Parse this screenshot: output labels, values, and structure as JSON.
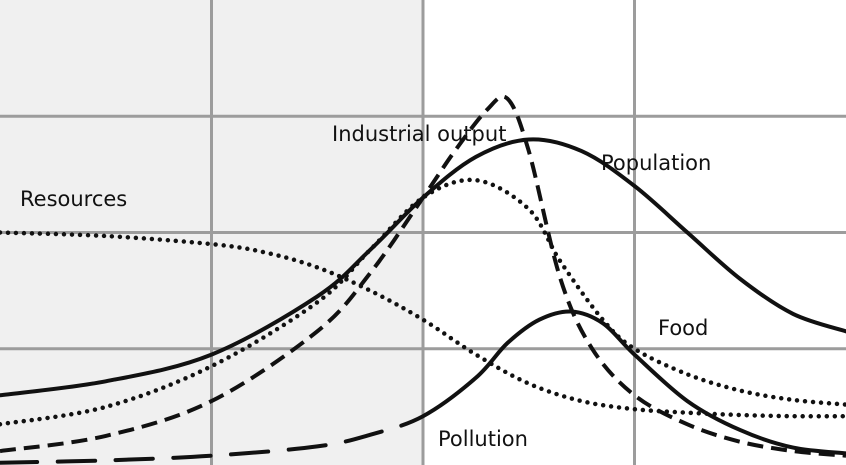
{
  "chart_data": {
    "type": "line",
    "title": "",
    "xlabel": "",
    "ylabel": "",
    "xlim": [
      0,
      8
    ],
    "ylim": [
      0,
      4
    ],
    "grid": true,
    "grid_x": [
      2,
      4,
      6
    ],
    "grid_y": [
      1,
      2,
      3
    ],
    "shaded_region": [
      0,
      4
    ],
    "legend": "none (series labelled inline)",
    "series": [
      {
        "name": "Population",
        "style": "solid",
        "x": [
          0,
          1,
          2,
          3,
          3.5,
          4,
          4.5,
          5,
          5.5,
          6,
          6.5,
          7,
          7.5,
          8
        ],
        "y": [
          0.6,
          0.72,
          0.95,
          1.45,
          1.85,
          2.3,
          2.65,
          2.8,
          2.7,
          2.4,
          2.0,
          1.6,
          1.3,
          1.15
        ]
      },
      {
        "name": "Industrial output",
        "style": "dashed",
        "x": [
          0,
          1,
          2,
          3,
          3.5,
          4,
          4.3,
          4.6,
          4.8,
          5.0,
          5.3,
          5.6,
          6,
          6.5,
          7,
          7.5,
          8
        ],
        "y": [
          0.12,
          0.25,
          0.55,
          1.15,
          1.65,
          2.3,
          2.7,
          3.05,
          3.15,
          2.7,
          1.6,
          1.0,
          0.6,
          0.35,
          0.2,
          0.12,
          0.08
        ]
      },
      {
        "name": "Food",
        "style": "dotted",
        "x": [
          0,
          1,
          2,
          3,
          3.5,
          4,
          4.5,
          5,
          5.3,
          5.7,
          6,
          6.5,
          7,
          7.5,
          8
        ],
        "y": [
          0.35,
          0.5,
          0.85,
          1.4,
          1.85,
          2.3,
          2.45,
          2.2,
          1.75,
          1.25,
          1.0,
          0.78,
          0.64,
          0.56,
          0.52
        ]
      },
      {
        "name": "Resources",
        "style": "dotted",
        "x": [
          0,
          1,
          2,
          2.5,
          3,
          3.5,
          4,
          4.5,
          5,
          5.5,
          6,
          6.5,
          7,
          7.5,
          8
        ],
        "y": [
          2.0,
          1.97,
          1.9,
          1.83,
          1.7,
          1.5,
          1.25,
          0.95,
          0.7,
          0.55,
          0.48,
          0.45,
          0.43,
          0.42,
          0.42
        ]
      },
      {
        "name": "Pollution",
        "style": "dashed-solid",
        "x": [
          0,
          1,
          2,
          3,
          3.5,
          4,
          4.5,
          4.8,
          5.1,
          5.4,
          5.7,
          6,
          6.5,
          7,
          7.5,
          8
        ],
        "y": [
          0.02,
          0.04,
          0.08,
          0.16,
          0.26,
          0.42,
          0.75,
          1.05,
          1.25,
          1.32,
          1.22,
          0.95,
          0.55,
          0.3,
          0.15,
          0.1
        ]
      }
    ],
    "annotations": [
      "Industrial output",
      "Population",
      "Resources",
      "Food",
      "Pollution"
    ]
  },
  "colors": {
    "background": "#ffffff",
    "shaded": "#f0f0f0",
    "grid": "#9c9c9c",
    "line": "#111111"
  }
}
